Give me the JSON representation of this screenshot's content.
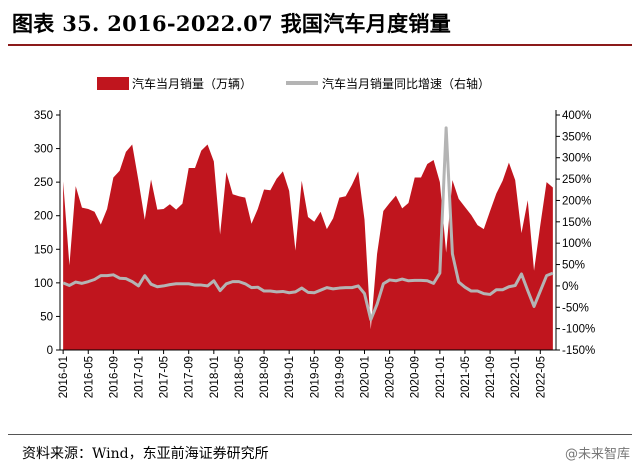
{
  "title": "图表 35. 2016-2022.07 我国汽车月度销量",
  "source": "资料来源：Wind，东亚前海证券研究所",
  "watermark": "@未来智库",
  "chart_data": {
    "type": "bar+line",
    "x": [
      "2016-01",
      "2016-02",
      "2016-03",
      "2016-04",
      "2016-05",
      "2016-06",
      "2016-07",
      "2016-08",
      "2016-09",
      "2016-10",
      "2016-11",
      "2016-12",
      "2017-01",
      "2017-02",
      "2017-03",
      "2017-04",
      "2017-05",
      "2017-06",
      "2017-07",
      "2017-08",
      "2017-09",
      "2017-10",
      "2017-11",
      "2017-12",
      "2018-01",
      "2018-02",
      "2018-03",
      "2018-04",
      "2018-05",
      "2018-06",
      "2018-07",
      "2018-08",
      "2018-09",
      "2018-10",
      "2018-11",
      "2018-12",
      "2019-01",
      "2019-02",
      "2019-03",
      "2019-04",
      "2019-05",
      "2019-06",
      "2019-07",
      "2019-08",
      "2019-09",
      "2019-10",
      "2019-11",
      "2019-12",
      "2020-01",
      "2020-02",
      "2020-03",
      "2020-04",
      "2020-05",
      "2020-06",
      "2020-07",
      "2020-08",
      "2020-09",
      "2020-10",
      "2020-11",
      "2020-12",
      "2021-01",
      "2021-02",
      "2021-03",
      "2021-04",
      "2021-05",
      "2021-06",
      "2021-07",
      "2021-08",
      "2021-09",
      "2021-10",
      "2021-11",
      "2021-12",
      "2022-01",
      "2022-02",
      "2022-03",
      "2022-04",
      "2022-05",
      "2022-06",
      "2022-07"
    ],
    "x_tick_labels": [
      "2016-01",
      "2016-05",
      "2016-09",
      "2017-01",
      "2017-05",
      "2017-09",
      "2018-01",
      "2018-05",
      "2018-09",
      "2019-01",
      "2019-05",
      "2019-09",
      "2020-01",
      "2020-05",
      "2020-09",
      "2021-01",
      "2021-05",
      "2021-09",
      "2022-01",
      "2022-05"
    ],
    "series": [
      {
        "name": "汽车当月销量（万辆）",
        "axis": "left",
        "color": "#c0151e",
        "values": [
          251,
          126,
          244,
          212,
          210,
          206,
          187,
          210,
          257,
          267,
          295,
          306,
          252,
          194,
          254,
          209,
          210,
          217,
          209,
          218,
          271,
          271,
          297,
          306,
          281,
          172,
          265,
          232,
          229,
          227,
          188,
          210,
          239,
          238,
          255,
          266,
          237,
          148,
          252,
          198,
          191,
          206,
          180,
          196,
          227,
          229,
          246,
          266,
          194,
          31,
          143,
          207,
          219,
          230,
          211,
          219,
          257,
          257,
          277,
          283,
          250,
          145,
          253,
          225,
          213,
          201,
          186,
          180,
          207,
          233,
          252,
          279,
          253,
          174,
          223,
          118,
          186,
          250,
          242
        ]
      },
      {
        "name": "汽车当月销量同比增速（右轴）",
        "axis": "right",
        "color": "#b4b4b4",
        "values": [
          7,
          1,
          9,
          6,
          10,
          15,
          24,
          24,
          26,
          18,
          17,
          10,
          0,
          24,
          4,
          -2,
          0,
          3,
          5,
          5,
          5,
          2,
          2,
          0,
          12,
          -11,
          5,
          10,
          10,
          5,
          -4,
          -3,
          -12,
          -12,
          -14,
          -13,
          -16,
          -14,
          -5,
          -15,
          -16,
          -10,
          -4,
          -7,
          -5,
          -4,
          -4,
          0,
          -18,
          -79,
          -43,
          5,
          14,
          12,
          16,
          12,
          13,
          13,
          12,
          6,
          30,
          370,
          75,
          9,
          -3,
          -12,
          -12,
          -18,
          -20,
          -9,
          -9,
          -2,
          1,
          28,
          -11,
          -48,
          -12,
          24,
          30
        ]
      }
    ],
    "ylim_left": [
      0,
      350
    ],
    "yticks_left": [
      "0",
      "50",
      "100",
      "150",
      "200",
      "250",
      "300",
      "350"
    ],
    "ylim_right": [
      -150,
      400
    ],
    "yticks_right": [
      "-150%",
      "-100%",
      "-50%",
      "0%",
      "50%",
      "100%",
      "150%",
      "200%",
      "250%",
      "300%",
      "350%",
      "400%"
    ],
    "legend_position": "top",
    "grid": false
  }
}
